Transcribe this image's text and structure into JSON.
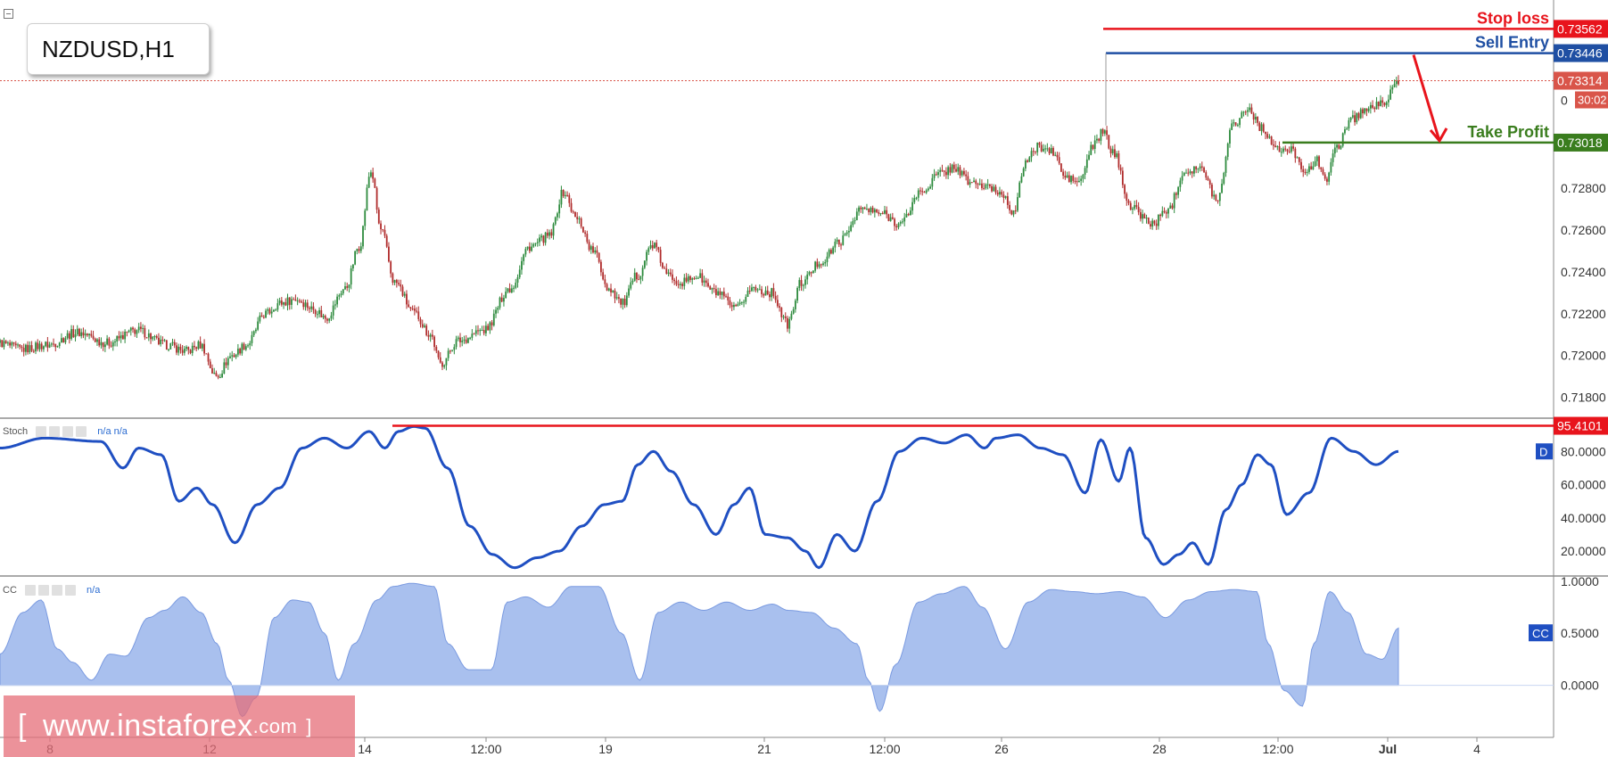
{
  "symbol": "NZDUSD,H1",
  "watermark": {
    "bracket_open": "[",
    "text": "www.instaforex",
    "suffix": ".com",
    "bracket_close": "]"
  },
  "colors": {
    "bull": "#2e8b3e",
    "bear": "#b02c2c",
    "stop": "#e8141c",
    "entry": "#1f4fa3",
    "tp": "#3a7d1e",
    "current": "#d9554a",
    "stoch": "#1f4fc2",
    "cc_fill": "#a9c0ee",
    "cc_line": "#7a9ae0"
  },
  "chart_data": [
    {
      "type": "candlestick",
      "title": "NZDUSD,H1",
      "ylim": [
        0.717,
        0.737
      ],
      "y_ticks": [
        "0.71800",
        "0.72000",
        "0.72200",
        "0.72400",
        "0.72600",
        "0.72800"
      ],
      "x_tick_labels": [
        "8",
        "12",
        "14",
        "12:00",
        "19",
        "21",
        "12:00",
        "26",
        "28",
        "12:00",
        "Jul",
        "4"
      ],
      "anchors": [
        [
          0,
          0.7206
        ],
        [
          12,
          0.7203
        ],
        [
          25,
          0.7205
        ],
        [
          40,
          0.7211
        ],
        [
          55,
          0.7206
        ],
        [
          70,
          0.7212
        ],
        [
          85,
          0.7205
        ],
        [
          95,
          0.7202
        ],
        [
          102,
          0.7205
        ],
        [
          110,
          0.719
        ],
        [
          118,
          0.72
        ],
        [
          125,
          0.7205
        ],
        [
          135,
          0.722
        ],
        [
          142,
          0.7225
        ],
        [
          150,
          0.7227
        ],
        [
          160,
          0.7222
        ],
        [
          165,
          0.7218
        ],
        [
          175,
          0.7232
        ],
        [
          182,
          0.7252
        ],
        [
          188,
          0.7288
        ],
        [
          193,
          0.726
        ],
        [
          200,
          0.7235
        ],
        [
          210,
          0.722
        ],
        [
          218,
          0.721
        ],
        [
          223,
          0.7196
        ],
        [
          232,
          0.7207
        ],
        [
          245,
          0.7212
        ],
        [
          258,
          0.7232
        ],
        [
          268,
          0.7252
        ],
        [
          278,
          0.7257
        ],
        [
          285,
          0.7278
        ],
        [
          292,
          0.7265
        ],
        [
          300,
          0.725
        ],
        [
          308,
          0.7232
        ],
        [
          315,
          0.7225
        ],
        [
          322,
          0.7238
        ],
        [
          330,
          0.7253
        ],
        [
          338,
          0.7238
        ],
        [
          345,
          0.7235
        ],
        [
          352,
          0.7238
        ],
        [
          362,
          0.723
        ],
        [
          372,
          0.7222
        ],
        [
          380,
          0.7232
        ],
        [
          390,
          0.723
        ],
        [
          398,
          0.7215
        ],
        [
          405,
          0.7235
        ],
        [
          415,
          0.7245
        ],
        [
          425,
          0.7255
        ],
        [
          435,
          0.727
        ],
        [
          445,
          0.7268
        ],
        [
          455,
          0.7263
        ],
        [
          465,
          0.7278
        ],
        [
          475,
          0.7287
        ],
        [
          482,
          0.729
        ],
        [
          490,
          0.7283
        ],
        [
          500,
          0.728
        ],
        [
          507,
          0.7277
        ],
        [
          512,
          0.7268
        ],
        [
          518,
          0.7293
        ],
        [
          525,
          0.73
        ],
        [
          532,
          0.7297
        ],
        [
          538,
          0.7285
        ],
        [
          545,
          0.7283
        ],
        [
          552,
          0.73
        ],
        [
          557,
          0.7307
        ],
        [
          562,
          0.7297
        ],
        [
          572,
          0.727
        ],
        [
          582,
          0.7263
        ],
        [
          590,
          0.727
        ],
        [
          598,
          0.7288
        ],
        [
          605,
          0.729
        ],
        [
          615,
          0.7275
        ],
        [
          622,
          0.731
        ],
        [
          630,
          0.7318
        ],
        [
          638,
          0.7308
        ],
        [
          645,
          0.7298
        ],
        [
          652,
          0.7298
        ],
        [
          660,
          0.7288
        ],
        [
          665,
          0.7293
        ],
        [
          670,
          0.7285
        ],
        [
          675,
          0.73
        ],
        [
          682,
          0.7313
        ],
        [
          690,
          0.7318
        ],
        [
          697,
          0.732
        ],
        [
          702,
          0.7325
        ],
        [
          705,
          0.733
        ]
      ],
      "last_index": 705,
      "levels": [
        {
          "name": "Stop loss",
          "value": 0.73562,
          "label": "0.73562"
        },
        {
          "name": "Sell Entry",
          "value": 0.73446,
          "label": "0.73446"
        },
        {
          "name": "Take Profit",
          "value": 0.73018,
          "label": "0.73018"
        }
      ],
      "current_price": {
        "value": 0.73314,
        "label": "0.73314",
        "countdown": "30:02"
      },
      "hidden_tick_label": "0"
    },
    {
      "type": "line",
      "name": "Stoch",
      "label": "Stoch",
      "legend_values": "n/a n/a",
      "badge": "D",
      "ylim": [
        5,
        100
      ],
      "y_ticks": [
        "20.0000",
        "40.0000",
        "60.0000",
        "80.0000"
      ],
      "level": {
        "value": 95.4101,
        "label": "95.4101"
      },
      "anchors": [
        [
          0,
          82
        ],
        [
          20,
          88
        ],
        [
          45,
          86
        ],
        [
          55,
          70
        ],
        [
          62,
          82
        ],
        [
          72,
          78
        ],
        [
          80,
          50
        ],
        [
          88,
          58
        ],
        [
          95,
          48
        ],
        [
          105,
          25
        ],
        [
          115,
          48
        ],
        [
          125,
          58
        ],
        [
          135,
          82
        ],
        [
          145,
          88
        ],
        [
          155,
          82
        ],
        [
          165,
          92
        ],
        [
          172,
          82
        ],
        [
          178,
          92
        ],
        [
          185,
          95
        ],
        [
          190,
          94
        ],
        [
          200,
          70
        ],
        [
          210,
          35
        ],
        [
          220,
          18
        ],
        [
          230,
          10
        ],
        [
          240,
          16
        ],
        [
          250,
          20
        ],
        [
          260,
          35
        ],
        [
          270,
          48
        ],
        [
          278,
          50
        ],
        [
          285,
          72
        ],
        [
          292,
          80
        ],
        [
          300,
          68
        ],
        [
          310,
          48
        ],
        [
          320,
          30
        ],
        [
          328,
          48
        ],
        [
          335,
          58
        ],
        [
          342,
          30
        ],
        [
          352,
          28
        ],
        [
          360,
          20
        ],
        [
          366,
          10
        ],
        [
          374,
          30
        ],
        [
          382,
          20
        ],
        [
          392,
          50
        ],
        [
          402,
          80
        ],
        [
          412,
          88
        ],
        [
          422,
          85
        ],
        [
          432,
          90
        ],
        [
          440,
          82
        ],
        [
          445,
          88
        ],
        [
          455,
          90
        ],
        [
          465,
          82
        ],
        [
          475,
          78
        ],
        [
          485,
          55
        ],
        [
          492,
          87
        ],
        [
          500,
          62
        ],
        [
          505,
          82
        ],
        [
          512,
          28
        ],
        [
          520,
          12
        ],
        [
          527,
          18
        ],
        [
          533,
          25
        ],
        [
          540,
          12
        ],
        [
          548,
          45
        ],
        [
          555,
          60
        ],
        [
          562,
          78
        ],
        [
          568,
          72
        ],
        [
          575,
          42
        ],
        [
          585,
          55
        ],
        [
          595,
          88
        ],
        [
          605,
          80
        ],
        [
          615,
          72
        ],
        [
          625,
          80
        ]
      ]
    },
    {
      "type": "area",
      "name": "CC",
      "label": "CC",
      "legend_values": "n/a",
      "badge": "CC",
      "ylim": [
        -0.5,
        1.05
      ],
      "y_ticks": [
        "1.0000",
        "0.5000",
        "0.0000"
      ],
      "anchors": [
        [
          0,
          0.3
        ],
        [
          10,
          0.7
        ],
        [
          18,
          0.82
        ],
        [
          25,
          0.35
        ],
        [
          32,
          0.22
        ],
        [
          40,
          0.05
        ],
        [
          48,
          0.3
        ],
        [
          55,
          0.28
        ],
        [
          65,
          0.65
        ],
        [
          72,
          0.72
        ],
        [
          80,
          0.85
        ],
        [
          88,
          0.7
        ],
        [
          95,
          0.4
        ],
        [
          100,
          0.05
        ],
        [
          106,
          -0.3
        ],
        [
          112,
          -0.12
        ],
        [
          120,
          0.65
        ],
        [
          128,
          0.82
        ],
        [
          135,
          0.8
        ],
        [
          142,
          0.5
        ],
        [
          148,
          0.05
        ],
        [
          155,
          0.4
        ],
        [
          165,
          0.82
        ],
        [
          172,
          0.95
        ],
        [
          180,
          0.98
        ],
        [
          190,
          0.95
        ],
        [
          196,
          0.4
        ],
        [
          205,
          0.15
        ],
        [
          215,
          0.15
        ],
        [
          222,
          0.8
        ],
        [
          230,
          0.85
        ],
        [
          240,
          0.75
        ],
        [
          250,
          0.95
        ],
        [
          262,
          0.95
        ],
        [
          272,
          0.5
        ],
        [
          280,
          0.05
        ],
        [
          288,
          0.7
        ],
        [
          298,
          0.8
        ],
        [
          308,
          0.72
        ],
        [
          318,
          0.8
        ],
        [
          328,
          0.72
        ],
        [
          338,
          0.78
        ],
        [
          345,
          0.72
        ],
        [
          355,
          0.7
        ],
        [
          365,
          0.55
        ],
        [
          375,
          0.4
        ],
        [
          380,
          0.05
        ],
        [
          385,
          -0.25
        ],
        [
          392,
          0.2
        ],
        [
          402,
          0.8
        ],
        [
          412,
          0.88
        ],
        [
          422,
          0.95
        ],
        [
          430,
          0.75
        ],
        [
          440,
          0.35
        ],
        [
          450,
          0.8
        ],
        [
          460,
          0.92
        ],
        [
          470,
          0.9
        ],
        [
          480,
          0.88
        ],
        [
          490,
          0.9
        ],
        [
          500,
          0.85
        ],
        [
          510,
          0.65
        ],
        [
          520,
          0.82
        ],
        [
          530,
          0.9
        ],
        [
          540,
          0.92
        ],
        [
          550,
          0.9
        ],
        [
          555,
          0.4
        ],
        [
          562,
          -0.05
        ],
        [
          570,
          -0.2
        ],
        [
          575,
          0.4
        ],
        [
          582,
          0.9
        ],
        [
          590,
          0.7
        ],
        [
          598,
          0.3
        ],
        [
          605,
          0.25
        ],
        [
          612,
          0.55
        ]
      ]
    }
  ]
}
